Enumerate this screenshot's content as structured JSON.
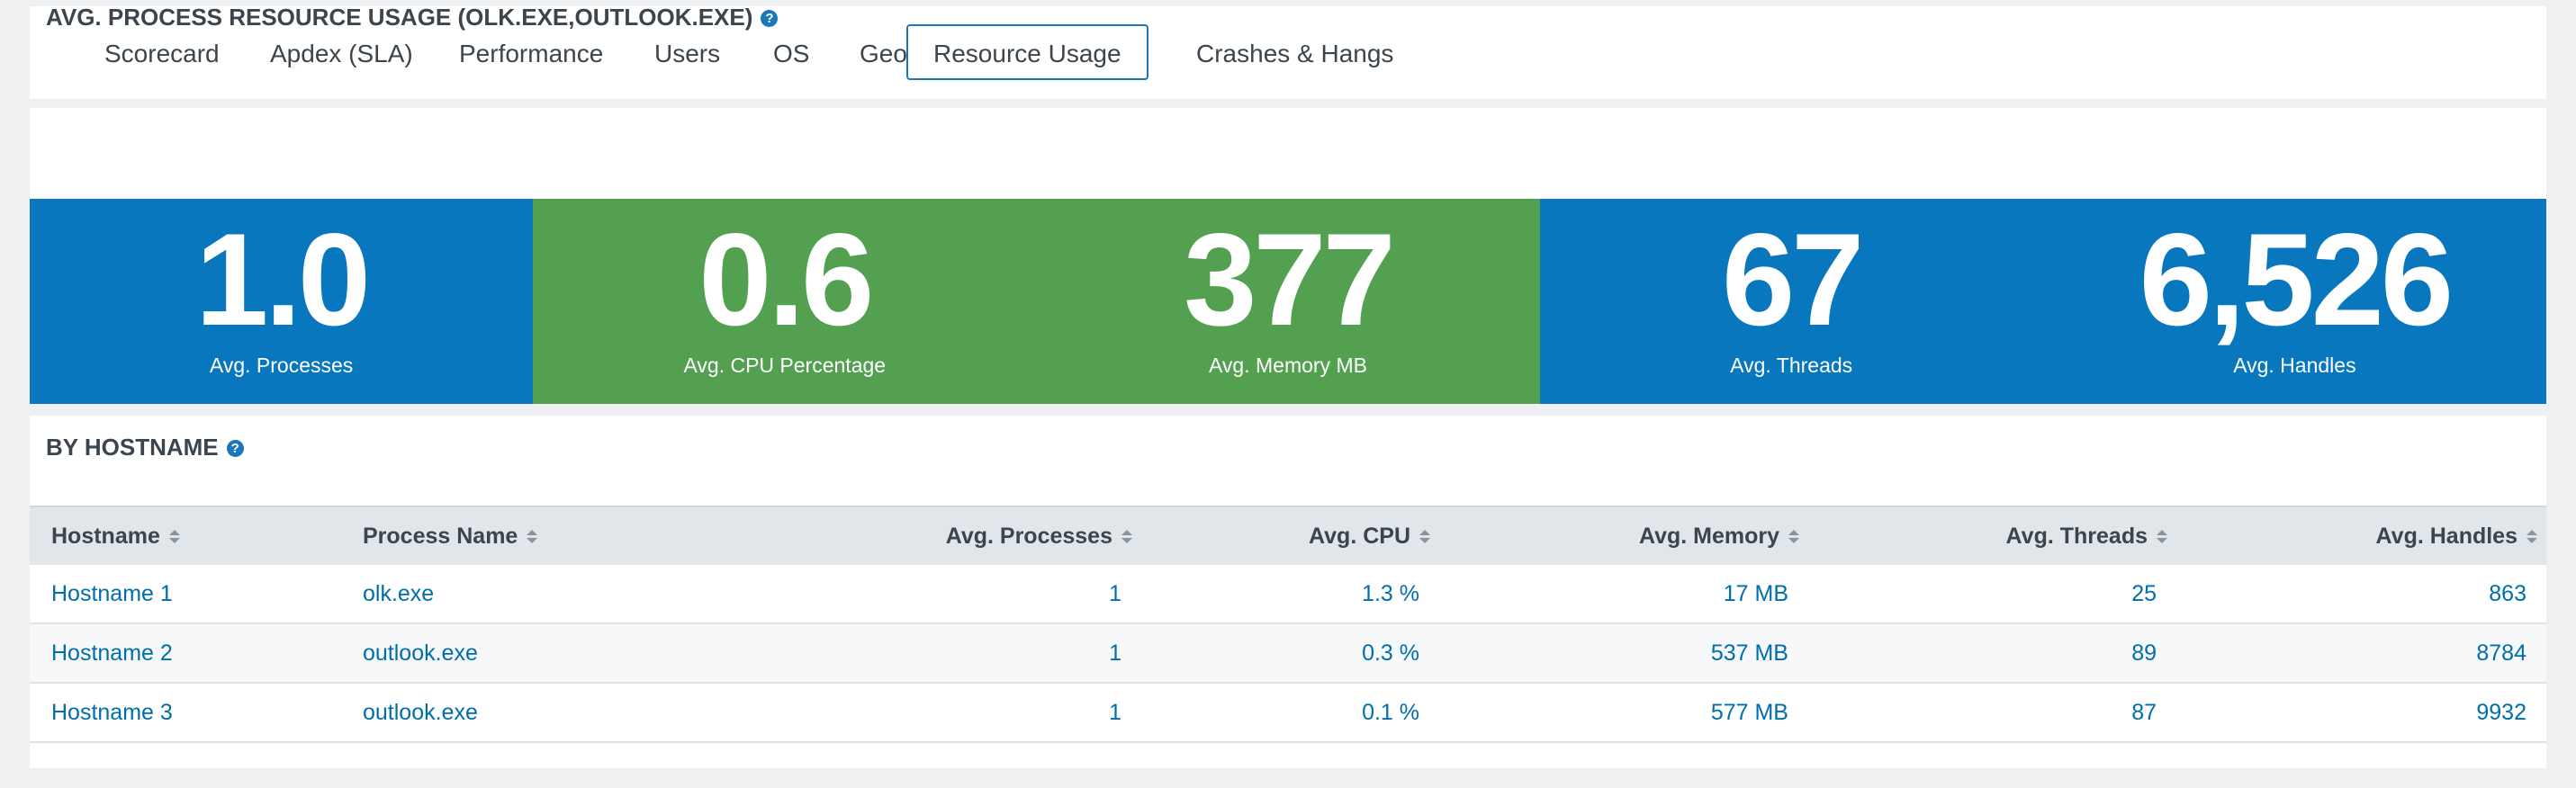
{
  "tabs": [
    "Scorecard",
    "Apdex (SLA)",
    "Performance",
    "Users",
    "OS",
    "Geo",
    "Resource Usage",
    "Crashes & Hangs"
  ],
  "selected_tab": 6,
  "usage_panel": {
    "title": "AVG. PROCESS RESOURCE USAGE (OLK.EXE,OUTLOOK.EXE)",
    "metrics": [
      {
        "value": "1.0",
        "label": "Avg. Processes",
        "color": "#0877be"
      },
      {
        "value": "0.6",
        "label": "Avg. CPU Percentage",
        "color": "#53a051"
      },
      {
        "value": "377",
        "label": "Avg. Memory MB",
        "color": "#53a051"
      },
      {
        "value": "67",
        "label": "Avg. Threads",
        "color": "#0877be"
      },
      {
        "value": "6,526",
        "label": "Avg. Handles",
        "color": "#0877be"
      }
    ]
  },
  "hostname_panel": {
    "title": "BY HOSTNAME",
    "table": {
      "columns": [
        "Hostname",
        "Process Name",
        "Avg. Processes",
        "Avg. CPU",
        "Avg. Memory",
        "Avg. Threads",
        "Avg. Handles"
      ],
      "rows": [
        [
          "Hostname 1",
          "olk.exe",
          "1",
          "1.3 %",
          "17 MB",
          "25",
          "863"
        ],
        [
          "Hostname 2",
          "outlook.exe",
          "1",
          "0.3 %",
          "537 MB",
          "89",
          "8784"
        ],
        [
          "Hostname 3",
          "outlook.exe",
          "1",
          "0.1 %",
          "577 MB",
          "87",
          "9932"
        ]
      ]
    }
  }
}
